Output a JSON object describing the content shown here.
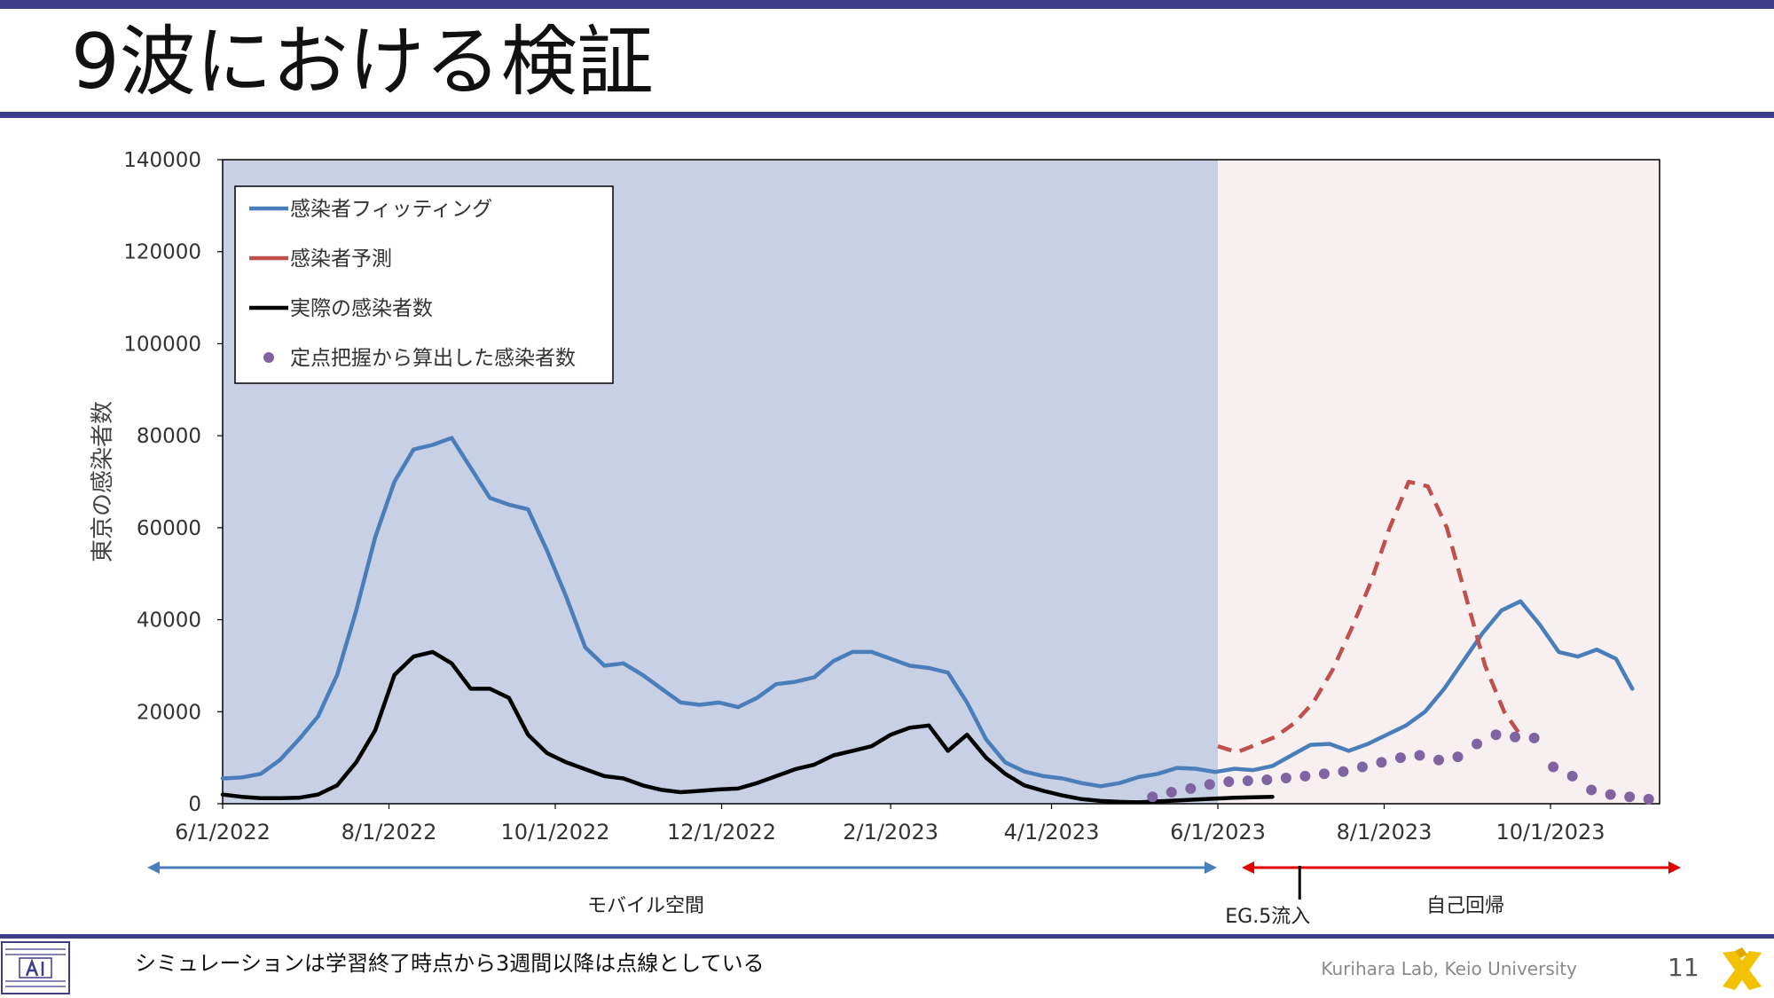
{
  "slide": {
    "title": "9波における検証",
    "footer_note": "シミュレーションは学習終了時点から3週間以降は点線としている",
    "lab_name": "Kurihara Lab, Keio University",
    "page_number": "11",
    "accent_color": "#3d3d8a"
  },
  "annotations": {
    "left_region_label": "モバイル空間",
    "right_region_label": "自己回帰",
    "event_label": "EG.5流入",
    "event_date": "2023-07-01",
    "left_arrow_color": "#4a7ebb",
    "right_arrow_color": "#e00000"
  },
  "chart_data": {
    "type": "line",
    "xlabel": "",
    "ylabel": "東京の感染者数",
    "x_ticks": [
      "6/1/2022",
      "8/1/2022",
      "10/1/2022",
      "12/1/2022",
      "2/1/2023",
      "4/1/2023",
      "6/1/2023",
      "8/1/2023",
      "10/1/2023"
    ],
    "xlim": [
      "2022-06-01",
      "2023-10-31"
    ],
    "ylim": [
      0,
      140000
    ],
    "y_ticks": [
      0,
      20000,
      40000,
      60000,
      80000,
      100000,
      120000,
      140000
    ],
    "shaded_regions": [
      {
        "from": "2022-06-01",
        "to": "2023-06-01",
        "color": "#c7d0e4"
      },
      {
        "from": "2023-06-01",
        "to": "2023-10-31",
        "color": "#f8f0f0"
      }
    ],
    "legend": {
      "placement": "top-left",
      "entries": [
        {
          "label": "感染者フィッティング",
          "marker": "line",
          "color": "#4a7ebb"
        },
        {
          "label": "感染者予測",
          "marker": "line",
          "color": "#c0504d"
        },
        {
          "label": "実際の感染者数",
          "marker": "line",
          "color": "#000000"
        },
        {
          "label": "定点把握から算出した感染者数",
          "marker": "dot",
          "color": "#8064a2"
        }
      ]
    },
    "series": [
      {
        "name": "感染者フィッティング",
        "color": "#4a7ebb",
        "style": "solid",
        "points": [
          [
            "2022-06-01",
            5500
          ],
          [
            "2022-06-08",
            5700
          ],
          [
            "2022-06-15",
            6500
          ],
          [
            "2022-06-22",
            9500
          ],
          [
            "2022-06-29",
            14000
          ],
          [
            "2022-07-06",
            19000
          ],
          [
            "2022-07-13",
            28000
          ],
          [
            "2022-07-20",
            42000
          ],
          [
            "2022-07-27",
            58000
          ],
          [
            "2022-08-03",
            70000
          ],
          [
            "2022-08-10",
            77000
          ],
          [
            "2022-08-17",
            78000
          ],
          [
            "2022-08-24",
            79500
          ],
          [
            "2022-08-31",
            73000
          ],
          [
            "2022-09-07",
            66500
          ],
          [
            "2022-09-14",
            65000
          ],
          [
            "2022-09-21",
            64000
          ],
          [
            "2022-09-28",
            55000
          ],
          [
            "2022-10-05",
            45000
          ],
          [
            "2022-10-12",
            34000
          ],
          [
            "2022-10-19",
            30000
          ],
          [
            "2022-10-26",
            30500
          ],
          [
            "2022-11-02",
            28000
          ],
          [
            "2022-11-09",
            25000
          ],
          [
            "2022-11-16",
            22000
          ],
          [
            "2022-11-23",
            21500
          ],
          [
            "2022-11-30",
            22000
          ],
          [
            "2022-12-07",
            21000
          ],
          [
            "2022-12-14",
            23000
          ],
          [
            "2022-12-21",
            26000
          ],
          [
            "2022-12-28",
            26500
          ],
          [
            "2023-01-04",
            27500
          ],
          [
            "2023-01-11",
            31000
          ],
          [
            "2023-01-18",
            33000
          ],
          [
            "2023-01-25",
            33000
          ],
          [
            "2023-02-01",
            31500
          ],
          [
            "2023-02-08",
            30000
          ],
          [
            "2023-02-15",
            29500
          ],
          [
            "2023-02-22",
            28500
          ],
          [
            "2023-03-01",
            22000
          ],
          [
            "2023-03-08",
            14000
          ],
          [
            "2023-03-15",
            9000
          ],
          [
            "2023-03-22",
            7000
          ],
          [
            "2023-03-29",
            6000
          ],
          [
            "2023-04-05",
            5500
          ],
          [
            "2023-04-12",
            4500
          ],
          [
            "2023-04-19",
            3800
          ],
          [
            "2023-04-26",
            4500
          ],
          [
            "2023-05-03",
            5800
          ],
          [
            "2023-05-10",
            6500
          ],
          [
            "2023-05-17",
            7800
          ],
          [
            "2023-05-24",
            7600
          ],
          [
            "2023-05-31",
            6900
          ],
          [
            "2023-06-07",
            7600
          ],
          [
            "2023-06-14",
            7300
          ],
          [
            "2023-06-21",
            8200
          ],
          [
            "2023-06-28",
            10500
          ],
          [
            "2023-07-05",
            12800
          ],
          [
            "2023-07-12",
            13000
          ],
          [
            "2023-07-19",
            11500
          ],
          [
            "2023-07-26",
            13000
          ],
          [
            "2023-08-02",
            15000
          ],
          [
            "2023-08-09",
            17000
          ],
          [
            "2023-08-16",
            20000
          ],
          [
            "2023-08-23",
            25000
          ],
          [
            "2023-08-30",
            31000
          ],
          [
            "2023-09-06",
            37000
          ],
          [
            "2023-09-13",
            42000
          ],
          [
            "2023-09-20",
            44000
          ],
          [
            "2023-09-27",
            39000
          ],
          [
            "2023-10-04",
            33000
          ],
          [
            "2023-10-11",
            32000
          ],
          [
            "2023-10-18",
            33500
          ],
          [
            "2023-10-25",
            31500
          ],
          [
            "2023-10-31",
            25000
          ]
        ]
      },
      {
        "name": "感染者予測",
        "color": "#c0504d",
        "style": "dashed",
        "points": [
          [
            "2023-06-01",
            12500
          ],
          [
            "2023-06-08",
            11200
          ],
          [
            "2023-06-15",
            12800
          ],
          [
            "2023-06-22",
            14500
          ],
          [
            "2023-06-29",
            17500
          ],
          [
            "2023-07-06",
            22000
          ],
          [
            "2023-07-13",
            29000
          ],
          [
            "2023-07-20",
            38000
          ],
          [
            "2023-07-27",
            48000
          ],
          [
            "2023-08-03",
            60000
          ],
          [
            "2023-08-10",
            70000
          ],
          [
            "2023-08-17",
            69000
          ],
          [
            "2023-08-24",
            60000
          ],
          [
            "2023-08-31",
            45000
          ],
          [
            "2023-09-07",
            30000
          ],
          [
            "2023-09-14",
            20000
          ],
          [
            "2023-09-21",
            14000
          ]
        ]
      },
      {
        "name": "実際の感染者数",
        "color": "#000000",
        "style": "solid",
        "points": [
          [
            "2022-06-01",
            2000
          ],
          [
            "2022-06-08",
            1500
          ],
          [
            "2022-06-15",
            1200
          ],
          [
            "2022-06-22",
            1200
          ],
          [
            "2022-06-29",
            1300
          ],
          [
            "2022-07-06",
            2000
          ],
          [
            "2022-07-13",
            4000
          ],
          [
            "2022-07-20",
            9000
          ],
          [
            "2022-07-27",
            16000
          ],
          [
            "2022-08-03",
            28000
          ],
          [
            "2022-08-10",
            32000
          ],
          [
            "2022-08-17",
            33000
          ],
          [
            "2022-08-24",
            30500
          ],
          [
            "2022-08-31",
            25000
          ],
          [
            "2022-09-07",
            25000
          ],
          [
            "2022-09-14",
            23000
          ],
          [
            "2022-09-21",
            15000
          ],
          [
            "2022-09-28",
            11000
          ],
          [
            "2022-10-05",
            9000
          ],
          [
            "2022-10-12",
            7500
          ],
          [
            "2022-10-19",
            6000
          ],
          [
            "2022-10-26",
            5500
          ],
          [
            "2022-11-02",
            4000
          ],
          [
            "2022-11-09",
            3000
          ],
          [
            "2022-11-16",
            2500
          ],
          [
            "2022-11-23",
            2800
          ],
          [
            "2022-11-30",
            3100
          ],
          [
            "2022-12-07",
            3300
          ],
          [
            "2022-12-14",
            4500
          ],
          [
            "2022-12-21",
            6000
          ],
          [
            "2022-12-28",
            7500
          ],
          [
            "2023-01-04",
            8500
          ],
          [
            "2023-01-11",
            10500
          ],
          [
            "2023-01-18",
            11500
          ],
          [
            "2023-01-25",
            12500
          ],
          [
            "2023-02-01",
            15000
          ],
          [
            "2023-02-08",
            16500
          ],
          [
            "2023-02-15",
            17000
          ],
          [
            "2023-02-22",
            11500
          ],
          [
            "2023-03-01",
            15000
          ],
          [
            "2023-03-08",
            10000
          ],
          [
            "2023-03-15",
            6500
          ],
          [
            "2023-03-22",
            4000
          ],
          [
            "2023-03-29",
            2800
          ],
          [
            "2023-04-05",
            1800
          ],
          [
            "2023-04-12",
            1000
          ],
          [
            "2023-04-19",
            600
          ],
          [
            "2023-04-26",
            400
          ],
          [
            "2023-05-03",
            300
          ],
          [
            "2023-05-10",
            500
          ],
          [
            "2023-05-17",
            700
          ],
          [
            "2023-05-24",
            900
          ],
          [
            "2023-05-31",
            1100
          ],
          [
            "2023-06-07",
            1300
          ],
          [
            "2023-06-14",
            1400
          ],
          [
            "2023-06-21",
            1500
          ]
        ]
      },
      {
        "name": "定点把握から算出した感染者数",
        "color": "#8064a2",
        "style": "dots",
        "points": [
          [
            "2023-05-08",
            1500
          ],
          [
            "2023-05-15",
            2500
          ],
          [
            "2023-05-22",
            3300
          ],
          [
            "2023-05-29",
            4200
          ],
          [
            "2023-06-05",
            4800
          ],
          [
            "2023-06-12",
            5000
          ],
          [
            "2023-06-19",
            5200
          ],
          [
            "2023-06-26",
            5600
          ],
          [
            "2023-07-03",
            6000
          ],
          [
            "2023-07-10",
            6500
          ],
          [
            "2023-07-17",
            7000
          ],
          [
            "2023-07-24",
            8000
          ],
          [
            "2023-07-31",
            9000
          ],
          [
            "2023-08-07",
            10000
          ],
          [
            "2023-08-14",
            10500
          ],
          [
            "2023-08-21",
            9500
          ],
          [
            "2023-08-28",
            10200
          ],
          [
            "2023-09-04",
            13000
          ],
          [
            "2023-09-11",
            15000
          ],
          [
            "2023-09-18",
            14500
          ],
          [
            "2023-09-25",
            14300
          ],
          [
            "2023-10-02",
            8000
          ],
          [
            "2023-10-09",
            6000
          ],
          [
            "2023-10-16",
            3000
          ],
          [
            "2023-10-23",
            2000
          ],
          [
            "2023-10-30",
            1500
          ],
          [
            "2023-11-06",
            1000
          ]
        ]
      }
    ]
  }
}
